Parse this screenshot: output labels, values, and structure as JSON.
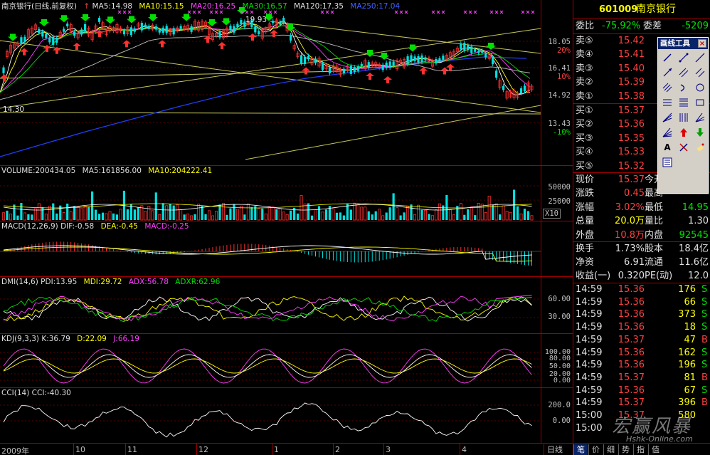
{
  "main_panel": {
    "title": "南京银行(日线,前复权)",
    "ma5": "MA5:14.98",
    "ma10": "MA10:15.15",
    "ma20": "MA20:16.25",
    "ma30": "MA30:16.57",
    "ma120": "MA120:17.35",
    "ma250": "MA250:17.04",
    "annot_high": "19.93",
    "annot_low": "14.30",
    "axis_labels": [
      "18.05",
      "20%",
      "16.41",
      "10%",
      "14.92",
      "13.43",
      "-10%"
    ]
  },
  "volume_panel": {
    "title": "VOLUME:200434.05",
    "ma5": "MA5:161856.00",
    "ma10": "MA10:204222.41",
    "axis_labels": [
      "50000",
      "25000",
      "X10"
    ]
  },
  "macd_panel": {
    "title": "MACD(12,26,9)",
    "dif": "DIF:-0.58",
    "dea": "DEA:-0.45",
    "macd": "MACD:-0.25"
  },
  "dmi_panel": {
    "title": "DMI(14,6)",
    "pdi": "PDI:13.95",
    "mdi": "MDI:29.72",
    "adx": "ADX:56.78",
    "adxr": "ADXR:62.96",
    "axis_labels": [
      "60.00",
      "30.00"
    ]
  },
  "kdj_panel": {
    "title": "KDJ(9,3,3)",
    "k": "K:36.79",
    "d": "D:22.09",
    "j": "J:66.19",
    "axis_labels": [
      "100.00",
      "80.00",
      "50.00",
      "20.00",
      "0.00"
    ]
  },
  "cci_panel": {
    "title": "CCI(14)",
    "cci": "CCI:-40.30",
    "axis_labels": [
      "200.0",
      "0.00"
    ]
  },
  "x_axis": {
    "labels": [
      "2009年",
      "10",
      "11",
      "12",
      "1",
      "2",
      "3",
      "4"
    ]
  },
  "bottom_tabs": [
    "日线",
    "笔",
    "价",
    "细",
    "势",
    "指",
    "值"
  ],
  "quote": {
    "code": "601009",
    "name": "南京银行",
    "weibi_label": "委比",
    "weibi_value": "-75.92%",
    "weicha_label": "委差",
    "weicha_value": "-5209",
    "asks": [
      {
        "label": "卖⑤",
        "price": "15.42"
      },
      {
        "label": "卖④",
        "price": "15.41"
      },
      {
        "label": "卖③",
        "price": "15.40"
      },
      {
        "label": "卖②",
        "price": "15.39"
      },
      {
        "label": "卖①",
        "price": "15.38"
      }
    ],
    "bids": [
      {
        "label": "买①",
        "price": "15.37"
      },
      {
        "label": "买②",
        "price": "15.36"
      },
      {
        "label": "买③",
        "price": "15.35"
      },
      {
        "label": "买④",
        "price": "15.33"
      },
      {
        "label": "买⑤",
        "price": "15.32"
      }
    ],
    "stats": [
      {
        "l1": "现价",
        "v1": "15.37",
        "l2": "今开",
        "v2": ""
      },
      {
        "l1": "涨跌",
        "v1": "0.45",
        "l2": "最高",
        "v2": ""
      },
      {
        "l1": "涨幅",
        "v1": "3.02%",
        "l2": "最低",
        "v2": "14.95"
      },
      {
        "l1": "总量",
        "v1": "20.0万",
        "l2": "量比",
        "v2": "1.30"
      },
      {
        "l1": "外盘",
        "v1": "10.8万",
        "l2": "内盘",
        "v2": "92545"
      }
    ],
    "stats2": [
      {
        "l1": "换手",
        "v1": "1.73%",
        "l2": "股本",
        "v2": "18.4亿"
      },
      {
        "l1": "净资",
        "v1": "6.91",
        "l2": "流通",
        "v2": "11.6亿"
      },
      {
        "l1": "收益(一)",
        "v1": "0.320",
        "l2": "PE(动)",
        "v2": "12.0"
      }
    ],
    "ticks": [
      {
        "time": "14:59",
        "price": "15.36",
        "vol": "176",
        "side": "S"
      },
      {
        "time": "14:59",
        "price": "15.36",
        "vol": "66",
        "side": "S"
      },
      {
        "time": "14:59",
        "price": "15.36",
        "vol": "373",
        "side": "S"
      },
      {
        "time": "14:59",
        "price": "15.36",
        "vol": "18",
        "side": "S"
      },
      {
        "time": "14:59",
        "price": "15.37",
        "vol": "47",
        "side": "B"
      },
      {
        "time": "14:59",
        "price": "15.36",
        "vol": "162",
        "side": "S"
      },
      {
        "time": "14:59",
        "price": "15.36",
        "vol": "196",
        "side": "S"
      },
      {
        "time": "14:59",
        "price": "15.37",
        "vol": "81",
        "side": "B"
      },
      {
        "time": "14:59",
        "price": "15.36",
        "vol": "67",
        "side": "S"
      },
      {
        "time": "14:59",
        "price": "15.37",
        "vol": "396",
        "side": "B"
      },
      {
        "time": "15:00",
        "price": "15.37",
        "vol": "580",
        "side": ""
      },
      {
        "time": "15:00",
        "price": "",
        "vol": "",
        "side": ""
      }
    ]
  },
  "toolbox": {
    "title": "画线工具",
    "close_label": "×",
    "text_tool_label": "A"
  },
  "watermark": {
    "text": "宏赢风暴",
    "url": "Hshk-Online.com"
  }
}
